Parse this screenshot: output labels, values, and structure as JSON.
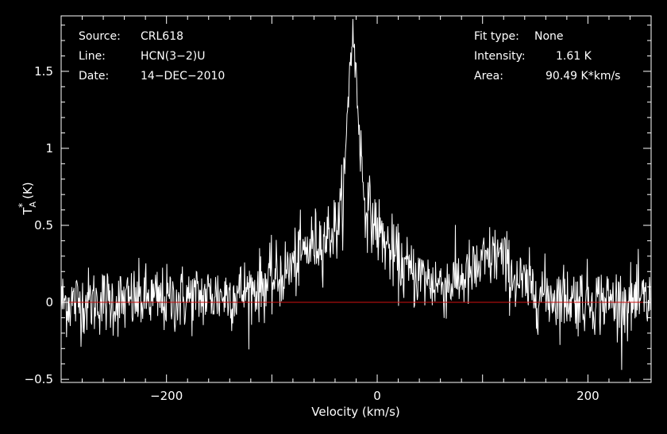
{
  "header_left": {
    "source_label": "Source:",
    "source_value": "CRL618",
    "line_label": "Line:",
    "line_value": "HCN(3−2)U",
    "date_label": "Date:",
    "date_value": "14−DEC−2010"
  },
  "header_right": {
    "fit_label": "Fit type:",
    "fit_value": "None",
    "intensity_label": "Intensity:",
    "intensity_value": "1.61 K",
    "area_label": "Area:",
    "area_value": "90.49 K*km/s"
  },
  "colors": {
    "background": "#000000",
    "foreground": "#ffffff",
    "baseline": "#d01010"
  },
  "chart_data": {
    "type": "line",
    "xlabel": "Velocity (km/s)",
    "ylabel_main": "T",
    "ylabel_sub": "A",
    "ylabel_sup": "*",
    "ylabel_unit": "(K)",
    "xlim": [
      -300,
      260
    ],
    "ylim": [
      -0.52,
      1.86
    ],
    "xticks": [
      {
        "value": -200,
        "label": "−200"
      },
      {
        "value": 0,
        "label": "0"
      },
      {
        "value": 200,
        "label": "200"
      }
    ],
    "yticks": [
      {
        "value": -0.5,
        "label": "−0.5"
      },
      {
        "value": 0,
        "label": "0"
      },
      {
        "value": 0.5,
        "label": "0.5"
      },
      {
        "value": 1,
        "label": "1"
      },
      {
        "value": 1.5,
        "label": "1.5"
      }
    ],
    "baseline_y": 0,
    "grid": false,
    "series": [
      {
        "x": [
          -300,
          -280,
          -260,
          -240,
          -220,
          -200,
          -180,
          -160,
          -140,
          -120,
          -100,
          -90,
          -80,
          -70,
          -60,
          -50,
          -45,
          -40,
          -35,
          -30,
          -28,
          -26,
          -24,
          -22,
          -20,
          -18,
          -16,
          -14,
          -12,
          -10,
          -5,
          0,
          10,
          20,
          30,
          40,
          50,
          60,
          70,
          80,
          90,
          100,
          110,
          115,
          120,
          130,
          140,
          160,
          180,
          200,
          220,
          240,
          260
        ],
        "y": [
          0,
          0,
          0.01,
          0,
          0.02,
          0.01,
          0.03,
          0.04,
          0.05,
          0.08,
          0.14,
          0.18,
          0.24,
          0.32,
          0.38,
          0.42,
          0.45,
          0.48,
          0.55,
          0.9,
          1.25,
          1.55,
          1.72,
          1.68,
          1.45,
          1.25,
          1.05,
          0.8,
          0.68,
          0.62,
          0.55,
          0.48,
          0.36,
          0.26,
          0.2,
          0.17,
          0.14,
          0.12,
          0.13,
          0.16,
          0.18,
          0.24,
          0.3,
          0.32,
          0.26,
          0.16,
          0.1,
          0.05,
          0.03,
          0.02,
          0.01,
          0.0,
          0.0
        ],
        "noise_rms": 0.11
      }
    ]
  }
}
